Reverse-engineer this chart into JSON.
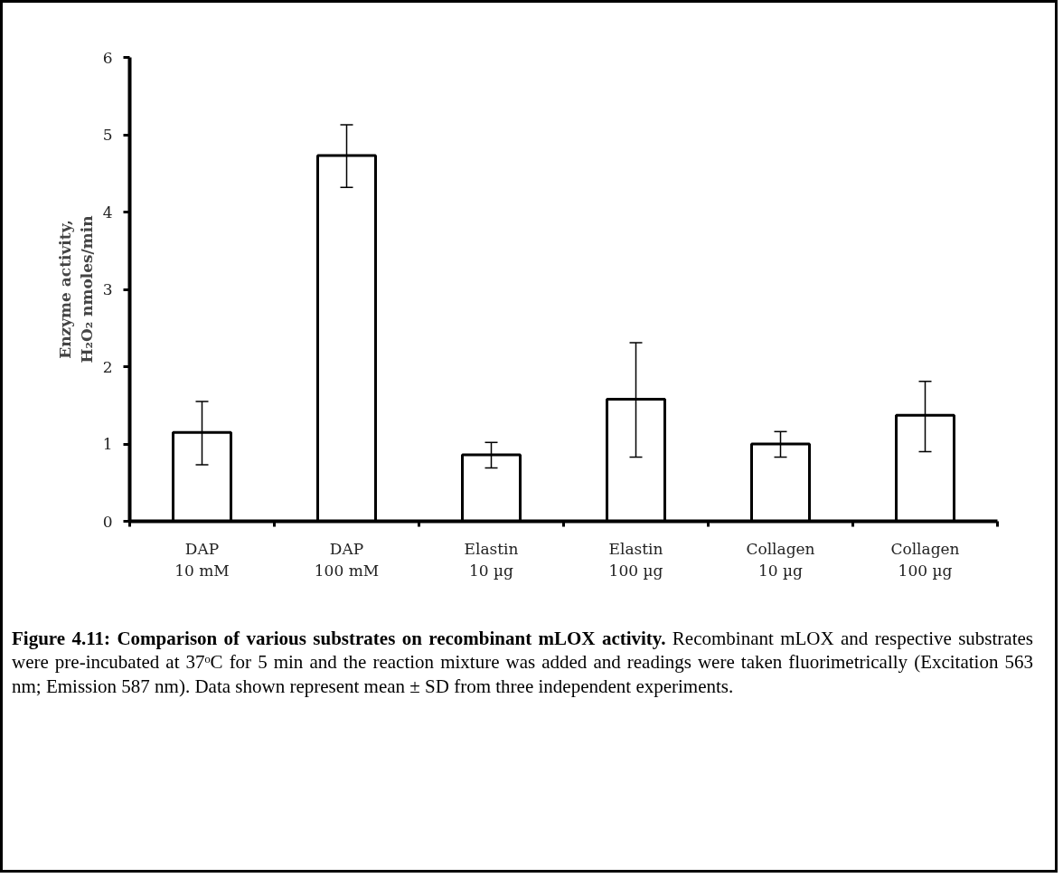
{
  "chart_data": {
    "type": "bar",
    "title": "Figure 4.11: Comparison of various substrates on recombinant mLOX activity.",
    "annotations": [
      "Recombinant mLOX and respective substrates were pre-incubated at 37ᵒC for 5 min and the reaction mixture was added and readings were taken fluorimetrically (Excitation 563 nm; Emission 587 nm). Data shown represent mean ± SD from three independent experiments."
    ],
    "ylabel": "Enzyme activity,\nH₂O₂ nmoles/min",
    "categories": [
      "DAP\n10 mM",
      "DAP\n100 mM",
      "Elastin\n10 µg",
      "Elastin\n100 µg",
      "Collagen\n10 µg",
      "Collagen\n100 µg"
    ],
    "values": [
      1.15,
      4.73,
      0.86,
      1.58,
      1.0,
      1.37
    ],
    "errors": [
      [
        0.73,
        1.55
      ],
      [
        4.32,
        5.13
      ],
      [
        0.69,
        1.02
      ],
      [
        0.83,
        2.31
      ],
      [
        0.83,
        1.16
      ],
      [
        0.9,
        1.81
      ]
    ],
    "color": "#ffffff",
    "ylim": [
      0,
      6
    ],
    "yticks": [
      0,
      1,
      2,
      3,
      4,
      5,
      6
    ],
    "grid": false
  }
}
